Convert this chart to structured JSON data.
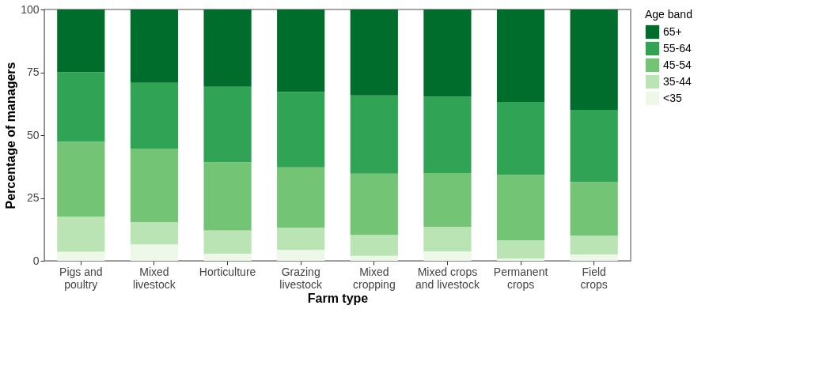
{
  "chart_data": {
    "type": "bar",
    "xlabel": "Farm type",
    "ylabel": "Percentage of managers",
    "legend_title": "Age band",
    "categories": [
      "Pigs and\npoultry",
      "Mixed\nlivestock",
      "Horticulture",
      "Grazing\nlivestock",
      "Mixed\ncropping",
      "Mixed crops\nand livestock",
      "Permanent\ncrops",
      "Field\ncrops"
    ],
    "stacked": true,
    "series": [
      {
        "name": "<35",
        "color": "#edf8e9",
        "values": [
          3.6,
          6.5,
          2.8,
          4.3,
          2.0,
          3.7,
          0.9,
          2.5
        ]
      },
      {
        "name": "35-44",
        "color": "#bae4b3",
        "values": [
          14.0,
          8.9,
          9.3,
          8.9,
          8.3,
          9.8,
          7.3,
          7.5
        ]
      },
      {
        "name": "45-54",
        "color": "#74c476",
        "values": [
          29.8,
          29.1,
          27.1,
          24.0,
          24.4,
          21.4,
          26.0,
          21.4
        ]
      },
      {
        "name": "55-64",
        "color": "#31a354",
        "values": [
          27.7,
          26.3,
          30.1,
          30.0,
          31.1,
          30.4,
          29.0,
          28.7
        ]
      },
      {
        "name": "65+",
        "color": "#006d2c",
        "values": [
          24.9,
          29.2,
          30.7,
          32.8,
          34.2,
          34.7,
          36.8,
          39.9
        ]
      }
    ],
    "ylim": [
      0,
      100
    ],
    "yticks": [
      0,
      25,
      50,
      75,
      100
    ],
    "grid": false,
    "legend": "right"
  }
}
